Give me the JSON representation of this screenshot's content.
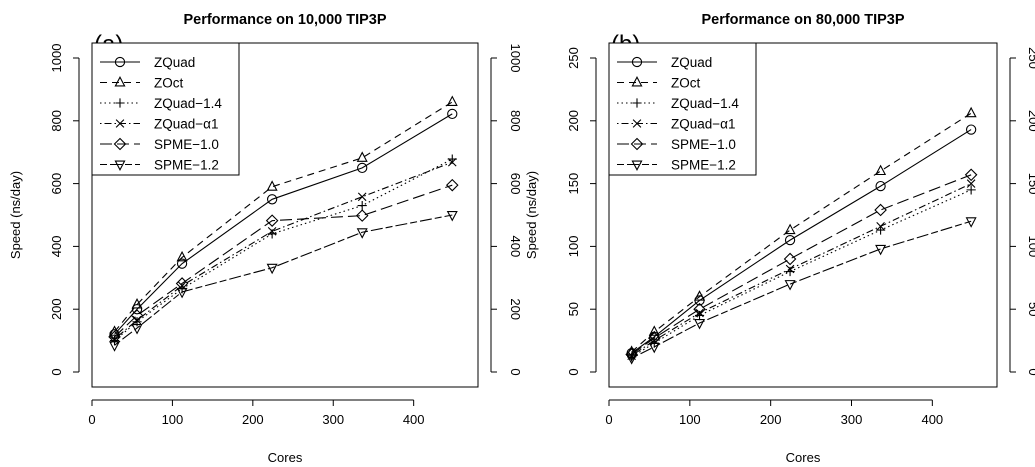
{
  "chart_data": [
    {
      "type": "line",
      "panel_label": "(a)",
      "title": "Performance on 10,000 TIP3P",
      "xlabel": "Cores",
      "ylabel": "Speed (ns/day)",
      "xlim": [
        0,
        480
      ],
      "ylim": [
        0,
        1000
      ],
      "xticks": [
        0,
        100,
        200,
        300,
        400
      ],
      "yticks": [
        0,
        200,
        400,
        600,
        800,
        1000
      ],
      "right_axis": true,
      "grid": false,
      "legend_position": "top-left",
      "x": [
        28,
        56,
        112,
        224,
        336,
        448
      ],
      "series": [
        {
          "name": "ZQuad",
          "values": [
            120,
            200,
            345,
            550,
            650,
            822
          ],
          "marker": "circle",
          "dash": "solid"
        },
        {
          "name": "ZOct",
          "values": [
            128,
            215,
            365,
            590,
            682,
            860
          ],
          "marker": "triangle-up",
          "dash": "dashed"
        },
        {
          "name": "ZQuad−1.4",
          "values": [
            100,
            160,
            265,
            440,
            530,
            678
          ],
          "marker": "plus",
          "dash": "dotted"
        },
        {
          "name": "ZQuad−α1",
          "values": [
            105,
            165,
            275,
            448,
            558,
            668
          ],
          "marker": "x",
          "dash": "dotdash"
        },
        {
          "name": "SPME−1.0",
          "values": [
            112,
            180,
            282,
            482,
            498,
            595
          ],
          "marker": "diamond",
          "dash": "longdash"
        },
        {
          "name": "SPME−1.2",
          "values": [
            85,
            140,
            255,
            332,
            445,
            500
          ],
          "marker": "triangle-down",
          "dash": "twodash"
        }
      ]
    },
    {
      "type": "line",
      "panel_label": "(b)",
      "title": "Performance on 80,000 TIP3P",
      "xlabel": "Cores",
      "ylabel": "Speed (ns/day)",
      "xlim": [
        0,
        480
      ],
      "ylim": [
        0,
        250
      ],
      "xticks": [
        0,
        100,
        200,
        300,
        400
      ],
      "yticks": [
        0,
        50,
        100,
        150,
        200,
        250
      ],
      "right_axis": true,
      "grid": false,
      "legend_position": "top-left",
      "x": [
        28,
        56,
        112,
        224,
        336,
        448
      ],
      "series": [
        {
          "name": "ZQuad",
          "values": [
            15,
            28,
            57,
            105,
            148,
            193
          ],
          "marker": "circle",
          "dash": "solid"
        },
        {
          "name": "ZOct",
          "values": [
            16,
            32,
            60,
            113,
            160,
            206
          ],
          "marker": "triangle-up",
          "dash": "dashed"
        },
        {
          "name": "ZQuad−1.4",
          "values": [
            12,
            23,
            45,
            80,
            113,
            145
          ],
          "marker": "plus",
          "dash": "dotted"
        },
        {
          "name": "ZQuad−α1",
          "values": [
            13,
            25,
            47,
            82,
            116,
            150
          ],
          "marker": "x",
          "dash": "dotdash"
        },
        {
          "name": "SPME−1.0",
          "values": [
            14,
            27,
            50,
            90,
            129,
            157
          ],
          "marker": "diamond",
          "dash": "longdash"
        },
        {
          "name": "SPME−1.2",
          "values": [
            11,
            20,
            39,
            70,
            98,
            120
          ],
          "marker": "triangle-down",
          "dash": "twodash"
        }
      ]
    }
  ]
}
